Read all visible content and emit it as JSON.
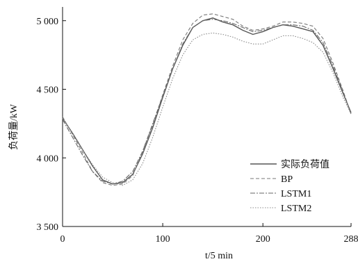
{
  "chart_data": {
    "type": "line",
    "xlabel": "t/5 min",
    "ylabel": "负荷量/kW",
    "xlim": [
      0,
      288
    ],
    "ylim": [
      3500,
      5100
    ],
    "xticks": [
      0,
      100,
      200,
      288
    ],
    "xtick_labels": [
      "0",
      "100",
      "200",
      "288"
    ],
    "yticks": [
      3500,
      4000,
      4500,
      5000
    ],
    "ytick_labels": [
      "3 500",
      "4 000",
      "4 500",
      "5 000"
    ],
    "grid": false,
    "legend_position": "bottom-right",
    "series": [
      {
        "name": "实际负荷值",
        "color": "#555555",
        "x": [
          0,
          10,
          20,
          30,
          40,
          50,
          60,
          70,
          80,
          90,
          100,
          110,
          120,
          130,
          140,
          150,
          160,
          170,
          180,
          190,
          200,
          210,
          220,
          230,
          240,
          250,
          260,
          270,
          280,
          288
        ],
        "y": [
          4290,
          4180,
          4060,
          3940,
          3840,
          3810,
          3820,
          3880,
          4030,
          4220,
          4440,
          4650,
          4820,
          4950,
          5000,
          5020,
          4990,
          4970,
          4930,
          4900,
          4920,
          4950,
          4970,
          4960,
          4940,
          4920,
          4820,
          4650,
          4470,
          4330
        ]
      },
      {
        "name": "BP",
        "color": "#777777",
        "x": [
          0,
          10,
          20,
          30,
          40,
          50,
          60,
          70,
          80,
          90,
          100,
          110,
          120,
          130,
          140,
          150,
          160,
          170,
          180,
          190,
          200,
          210,
          220,
          230,
          240,
          250,
          260,
          270,
          280,
          288
        ],
        "y": [
          4300,
          4170,
          4040,
          3900,
          3820,
          3800,
          3810,
          3870,
          4050,
          4240,
          4460,
          4670,
          4860,
          4980,
          5040,
          5050,
          5030,
          5010,
          4960,
          4930,
          4940,
          4960,
          4990,
          4990,
          4980,
          4960,
          4870,
          4690,
          4490,
          4320
        ]
      },
      {
        "name": "LSTM1",
        "color": "#666666",
        "x": [
          0,
          10,
          20,
          30,
          40,
          50,
          60,
          70,
          80,
          90,
          100,
          110,
          120,
          130,
          140,
          150,
          160,
          170,
          180,
          190,
          200,
          210,
          220,
          230,
          240,
          250,
          260,
          270,
          280,
          288
        ],
        "y": [
          4280,
          4150,
          4020,
          3900,
          3830,
          3810,
          3830,
          3900,
          4050,
          4250,
          4450,
          4650,
          4830,
          4950,
          5000,
          5010,
          5000,
          4980,
          4950,
          4920,
          4930,
          4950,
          4970,
          4970,
          4960,
          4930,
          4840,
          4670,
          4480,
          4320
        ]
      },
      {
        "name": "LSTM2",
        "color": "#888888",
        "x": [
          0,
          10,
          20,
          30,
          40,
          50,
          60,
          70,
          80,
          90,
          100,
          110,
          120,
          130,
          140,
          150,
          160,
          170,
          180,
          190,
          200,
          210,
          220,
          230,
          240,
          250,
          260,
          270,
          280,
          288
        ],
        "y": [
          4290,
          4180,
          4060,
          3950,
          3860,
          3820,
          3800,
          3840,
          3960,
          4150,
          4370,
          4580,
          4750,
          4860,
          4900,
          4910,
          4900,
          4880,
          4850,
          4830,
          4830,
          4860,
          4890,
          4890,
          4870,
          4840,
          4770,
          4620,
          4440,
          4320
        ]
      }
    ]
  }
}
